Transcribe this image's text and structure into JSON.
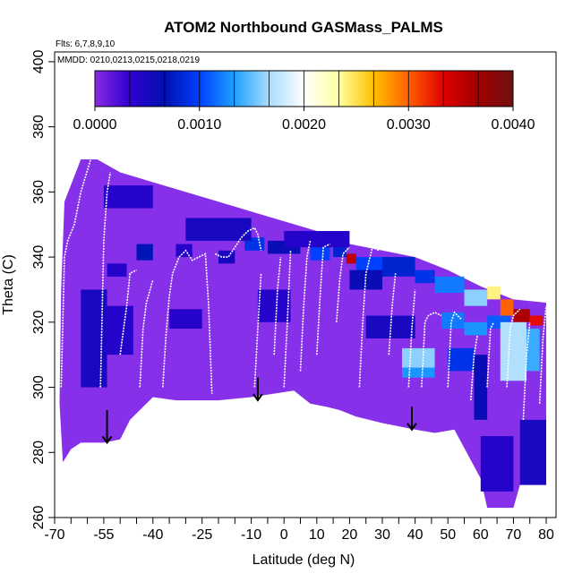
{
  "chart_data": {
    "type": "heatmap",
    "title": "ATOM2 Northbound GASMass_PALMS",
    "annotations": {
      "flights": "Flts: 6,7,8,9,10",
      "dates": "MMDD: 0210,0213,0215,0218,0219"
    },
    "xlabel": "Latitude (deg N)",
    "ylabel": "Theta (C)",
    "xlim": [
      -70,
      83
    ],
    "ylim": [
      260,
      403
    ],
    "x_tick_labels": [
      "-70",
      "-55",
      "-40",
      "-25",
      "-10",
      "0",
      "10",
      "20",
      "30",
      "40",
      "50",
      "60",
      "70",
      "80"
    ],
    "x_ticks": [
      -70,
      -55,
      -40,
      -25,
      -10,
      0,
      10,
      20,
      30,
      40,
      50,
      60,
      70,
      80
    ],
    "x_minor_ticks": [
      -65,
      -60,
      -50,
      -45,
      -35,
      -30,
      -20,
      -15,
      -5,
      5,
      15,
      25,
      35,
      45,
      55,
      65,
      75
    ],
    "y_tick_labels": [
      "260",
      "280",
      "300",
      "320",
      "340",
      "360",
      "380",
      "400"
    ],
    "y_ticks": [
      260,
      280,
      300,
      320,
      340,
      360,
      380,
      400
    ],
    "colorbar": {
      "tick_labels": [
        "0.0000",
        "0.0010",
        "0.0020",
        "0.0030",
        "0.0040"
      ],
      "ticks": [
        0,
        0.001,
        0.002,
        0.003,
        0.004
      ],
      "range": [
        0,
        0.004
      ],
      "divisions": 12,
      "stops": [
        "#8a2be2",
        "#3000d0",
        "#0010b0",
        "#0040ff",
        "#1ea0ff",
        "#a8dcff",
        "#ffffff",
        "#ffffa0",
        "#ffc000",
        "#ff6000",
        "#e00000",
        "#a00000",
        "#701010"
      ]
    },
    "colors": {
      "background_field": "#8630ea",
      "flight_track": "#ffffff",
      "arrow": "#000000"
    },
    "field_outline": [
      [
        -67.5,
        277
      ],
      [
        -65,
        281
      ],
      [
        -62,
        283
      ],
      [
        -55,
        283
      ],
      [
        -50,
        284
      ],
      [
        -47,
        290
      ],
      [
        -44,
        293
      ],
      [
        -40,
        297
      ],
      [
        -33,
        296
      ],
      [
        -20,
        296
      ],
      [
        -10,
        297
      ],
      [
        3,
        299
      ],
      [
        8,
        295
      ],
      [
        13,
        294
      ],
      [
        17,
        293
      ],
      [
        22,
        291
      ],
      [
        30,
        289
      ],
      [
        40,
        287
      ],
      [
        46,
        286
      ],
      [
        52,
        287
      ],
      [
        60,
        272
      ],
      [
        62,
        263
      ],
      [
        70,
        263
      ],
      [
        72,
        270
      ],
      [
        80,
        285
      ],
      [
        80,
        326
      ],
      [
        70,
        327
      ],
      [
        60,
        331
      ],
      [
        50,
        336
      ],
      [
        40,
        340
      ],
      [
        30,
        342
      ],
      [
        20,
        344
      ],
      [
        10,
        348
      ],
      [
        0,
        351
      ],
      [
        -10,
        354
      ],
      [
        -20,
        357
      ],
      [
        -30,
        360
      ],
      [
        -40,
        363
      ],
      [
        -50,
        366
      ],
      [
        -57,
        370
      ],
      [
        -62,
        370
      ],
      [
        -67,
        357
      ],
      [
        -68,
        330
      ],
      [
        -68.5,
        295
      ]
    ],
    "cells": [
      {
        "x": [
          -54,
          -48
        ],
        "y": [
          334,
          338
        ],
        "v": 0.0004
      },
      {
        "x": [
          -45,
          -40
        ],
        "y": [
          339,
          344
        ],
        "v": 0.0007
      },
      {
        "x": [
          -33,
          -28
        ],
        "y": [
          340,
          344
        ],
        "v": 0.0004
      },
      {
        "x": [
          -20,
          -15
        ],
        "y": [
          338,
          342
        ],
        "v": 0.0005
      },
      {
        "x": [
          -12,
          -6
        ],
        "y": [
          342,
          346
        ],
        "v": 0.0009
      },
      {
        "x": [
          -5,
          5
        ],
        "y": [
          341,
          345
        ],
        "v": 0.0006
      },
      {
        "x": [
          8,
          14
        ],
        "y": [
          339,
          344
        ],
        "v": 0.001
      },
      {
        "x": [
          15,
          19
        ],
        "y": [
          340,
          345
        ],
        "v": 0.0008
      },
      {
        "x": [
          19,
          22
        ],
        "y": [
          338,
          341
        ],
        "v": 0.0035
      },
      {
        "x": [
          22,
          30
        ],
        "y": [
          335,
          340
        ],
        "v": 0.001
      },
      {
        "x": [
          40,
          46
        ],
        "y": [
          332,
          336
        ],
        "v": 0.0009
      },
      {
        "x": [
          46,
          55
        ],
        "y": [
          329,
          334
        ],
        "v": 0.0012
      },
      {
        "x": [
          55,
          62
        ],
        "y": [
          325,
          330
        ],
        "v": 0.0016
      },
      {
        "x": [
          62,
          66
        ],
        "y": [
          327,
          331
        ],
        "v": 0.0024
      },
      {
        "x": [
          66,
          70
        ],
        "y": [
          322,
          327
        ],
        "v": 0.003
      },
      {
        "x": [
          70,
          75
        ],
        "y": [
          320,
          324
        ],
        "v": 0.0036
      },
      {
        "x": [
          75,
          79
        ],
        "y": [
          319,
          322
        ],
        "v": 0.0033
      },
      {
        "x": [
          48,
          55
        ],
        "y": [
          318,
          323
        ],
        "v": 0.0012
      },
      {
        "x": [
          55,
          62
        ],
        "y": [
          316,
          320
        ],
        "v": 0.0013
      },
      {
        "x": [
          62,
          69
        ],
        "y": [
          318,
          322
        ],
        "v": 0.0011
      },
      {
        "x": [
          36,
          46
        ],
        "y": [
          306,
          312
        ],
        "v": 0.0016
      },
      {
        "x": [
          36,
          46
        ],
        "y": [
          303,
          306
        ],
        "v": 0.0013
      },
      {
        "x": [
          66,
          74
        ],
        "y": [
          302,
          320
        ],
        "v": 0.0017
      },
      {
        "x": [
          74,
          78
        ],
        "y": [
          305,
          318
        ],
        "v": 0.0014
      },
      {
        "x": [
          50,
          58
        ],
        "y": [
          305,
          312
        ],
        "v": 0.0009
      },
      {
        "x": [
          58,
          62
        ],
        "y": [
          290,
          310
        ],
        "v": 0.0006
      },
      {
        "x": [
          60,
          70
        ],
        "y": [
          268,
          285
        ],
        "v": 0.0004
      },
      {
        "x": [
          72,
          80
        ],
        "y": [
          270,
          290
        ],
        "v": 0.0005
      },
      {
        "x": [
          -62,
          -54
        ],
        "y": [
          300,
          330
        ],
        "v": 0.0005
      },
      {
        "x": [
          -54,
          -46
        ],
        "y": [
          310,
          325
        ],
        "v": 0.0004
      },
      {
        "x": [
          -35,
          -25
        ],
        "y": [
          318,
          324
        ],
        "v": 0.0004
      },
      {
        "x": [
          -8,
          2
        ],
        "y": [
          320,
          330
        ],
        "v": 0.0004
      },
      {
        "x": [
          20,
          30
        ],
        "y": [
          330,
          336
        ],
        "v": 0.0006
      },
      {
        "x": [
          30,
          40
        ],
        "y": [
          334,
          340
        ],
        "v": 0.0008
      },
      {
        "x": [
          -55,
          -40
        ],
        "y": [
          355,
          362
        ],
        "v": 0.0004
      },
      {
        "x": [
          -30,
          -10
        ],
        "y": [
          345,
          352
        ],
        "v": 0.0005
      },
      {
        "x": [
          0,
          20
        ],
        "y": [
          343,
          348
        ],
        "v": 0.0004
      },
      {
        "x": [
          25,
          40
        ],
        "y": [
          315,
          322
        ],
        "v": 0.0005
      }
    ],
    "flight_tracks": [
      [
        [
          -68,
          300
        ],
        [
          -67,
          340
        ],
        [
          -66,
          345
        ],
        [
          -64,
          350
        ],
        [
          -62,
          360
        ],
        [
          -59,
          370
        ]
      ],
      [
        [
          -56,
          300
        ],
        [
          -55,
          345
        ],
        [
          -54,
          360
        ],
        [
          -53,
          366
        ]
      ],
      [
        [
          -50,
          310
        ],
        [
          -48,
          325
        ],
        [
          -47,
          335
        ],
        [
          -45,
          336
        ]
      ],
      [
        [
          -44,
          300
        ],
        [
          -43,
          318
        ],
        [
          -42,
          326
        ],
        [
          -40,
          333
        ]
      ],
      [
        [
          -37,
          300
        ],
        [
          -36,
          316
        ],
        [
          -35,
          328
        ],
        [
          -34,
          335
        ],
        [
          -32,
          340
        ],
        [
          -30,
          342
        ],
        [
          -28,
          339
        ],
        [
          -26,
          340
        ],
        [
          -24,
          341
        ],
        [
          -23,
          325
        ],
        [
          -22,
          298
        ]
      ],
      [
        [
          -21,
          341
        ],
        [
          -19,
          340
        ],
        [
          -17,
          340
        ],
        [
          -15,
          343
        ],
        [
          -13,
          346
        ],
        [
          -11,
          348
        ],
        [
          -9,
          349
        ],
        [
          -8,
          347
        ],
        [
          -7,
          342
        ]
      ],
      [
        [
          -9,
          300
        ],
        [
          -8,
          318
        ],
        [
          -7,
          335
        ]
      ],
      [
        [
          -3,
          310
        ],
        [
          -2,
          330
        ],
        [
          -1,
          340
        ]
      ],
      [
        [
          0,
          300
        ],
        [
          1,
          320
        ],
        [
          2,
          342
        ]
      ],
      [
        [
          5,
          305
        ],
        [
          6,
          325
        ],
        [
          7,
          340
        ],
        [
          8,
          345
        ]
      ],
      [
        [
          10,
          310
        ],
        [
          11,
          328
        ],
        [
          12,
          343
        ],
        [
          14,
          344
        ]
      ],
      [
        [
          16,
          320
        ],
        [
          17,
          333
        ],
        [
          18,
          341
        ],
        [
          20,
          343
        ]
      ],
      [
        [
          23,
          300
        ],
        [
          24,
          320
        ],
        [
          25,
          335
        ],
        [
          27,
          343
        ],
        [
          29,
          342
        ]
      ],
      [
        [
          32,
          310
        ],
        [
          33,
          325
        ],
        [
          34,
          335
        ]
      ],
      [
        [
          38,
          300
        ],
        [
          39,
          318
        ],
        [
          40,
          330
        ]
      ],
      [
        [
          42,
          300
        ],
        [
          43,
          320
        ],
        [
          44,
          322
        ],
        [
          46,
          323
        ],
        [
          48,
          322
        ]
      ],
      [
        [
          50,
          300
        ],
        [
          51,
          320
        ],
        [
          52,
          323
        ],
        [
          54,
          321
        ]
      ],
      [
        [
          57,
          296
        ],
        [
          58,
          310
        ],
        [
          59,
          316
        ]
      ],
      [
        [
          62,
          300
        ],
        [
          63,
          318
        ],
        [
          64,
          320
        ]
      ],
      [
        [
          68,
          300
        ],
        [
          69,
          318
        ],
        [
          70,
          322
        ],
        [
          72,
          324
        ]
      ],
      [
        [
          73,
          290
        ],
        [
          74,
          310
        ],
        [
          75,
          320
        ]
      ],
      [
        [
          78,
          295
        ],
        [
          79,
          315
        ],
        [
          80,
          325
        ]
      ]
    ],
    "arrows": [
      {
        "x": -54,
        "y_start": 293,
        "y_end": 283
      },
      {
        "x": -8,
        "y_start": 303,
        "y_end": 296
      },
      {
        "x": 39,
        "y_start": 294,
        "y_end": 287
      }
    ]
  }
}
